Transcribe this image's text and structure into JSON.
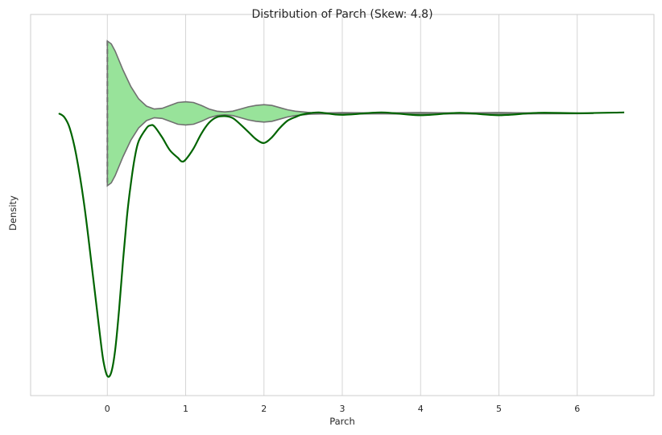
{
  "chart_data": {
    "type": "violin",
    "title": "Distribution of Parch (Skew: 4.8)",
    "xlabel": "Parch",
    "ylabel": "Density",
    "xlim": [
      -0.98,
      6.98
    ],
    "xticks": [
      0,
      1,
      2,
      3,
      4,
      5,
      6
    ],
    "grid": "vertical",
    "colors": {
      "violin_fill": "#98e39a",
      "violin_edge": "#707070",
      "line": "#006400",
      "grid": "#d5d5d5",
      "axes": "#cccccc"
    },
    "series": [
      {
        "type": "violin",
        "fill": "#98e39a",
        "points": [
          [
            0.0,
            1.0
          ],
          [
            0.05,
            0.96
          ],
          [
            0.1,
            0.86
          ],
          [
            0.2,
            0.6
          ],
          [
            0.3,
            0.37
          ],
          [
            0.4,
            0.2
          ],
          [
            0.5,
            0.1
          ],
          [
            0.6,
            0.06
          ],
          [
            0.7,
            0.07
          ],
          [
            0.8,
            0.11
          ],
          [
            0.9,
            0.15
          ],
          [
            1.0,
            0.16
          ],
          [
            1.1,
            0.15
          ],
          [
            1.2,
            0.11
          ],
          [
            1.3,
            0.06
          ],
          [
            1.4,
            0.03
          ],
          [
            1.5,
            0.02
          ],
          [
            1.6,
            0.03
          ],
          [
            1.7,
            0.06
          ],
          [
            1.8,
            0.09
          ],
          [
            1.9,
            0.11
          ],
          [
            2.0,
            0.12
          ],
          [
            2.1,
            0.11
          ],
          [
            2.2,
            0.08
          ],
          [
            2.3,
            0.05
          ],
          [
            2.4,
            0.03
          ],
          [
            2.5,
            0.02
          ],
          [
            2.6,
            0.01
          ],
          [
            2.8,
            0.007
          ],
          [
            3.0,
            0.01
          ],
          [
            3.5,
            0.004
          ],
          [
            4.0,
            0.012
          ],
          [
            4.5,
            0.004
          ],
          [
            5.0,
            0.012
          ],
          [
            5.5,
            0.004
          ],
          [
            6.0,
            0.003
          ],
          [
            6.2,
            0.001
          ]
        ]
      },
      {
        "type": "line",
        "color": "#006400",
        "points": [
          [
            -0.62,
            0.0
          ],
          [
            -0.55,
            -0.02
          ],
          [
            -0.48,
            -0.08
          ],
          [
            -0.4,
            -0.22
          ],
          [
            -0.3,
            -0.48
          ],
          [
            -0.2,
            -0.82
          ],
          [
            -0.1,
            -1.18
          ],
          [
            -0.05,
            -1.34
          ],
          [
            0.0,
            -1.42
          ],
          [
            0.05,
            -1.4
          ],
          [
            0.1,
            -1.28
          ],
          [
            0.15,
            -1.06
          ],
          [
            0.2,
            -0.8
          ],
          [
            0.25,
            -0.56
          ],
          [
            0.3,
            -0.38
          ],
          [
            0.35,
            -0.24
          ],
          [
            0.4,
            -0.15
          ],
          [
            0.5,
            -0.08
          ],
          [
            0.55,
            -0.065
          ],
          [
            0.6,
            -0.07
          ],
          [
            0.7,
            -0.13
          ],
          [
            0.8,
            -0.2
          ],
          [
            0.9,
            -0.24
          ],
          [
            0.95,
            -0.26
          ],
          [
            1.0,
            -0.25
          ],
          [
            1.1,
            -0.19
          ],
          [
            1.2,
            -0.11
          ],
          [
            1.3,
            -0.05
          ],
          [
            1.4,
            -0.02
          ],
          [
            1.5,
            -0.015
          ],
          [
            1.6,
            -0.025
          ],
          [
            1.7,
            -0.06
          ],
          [
            1.8,
            -0.1
          ],
          [
            1.9,
            -0.14
          ],
          [
            2.0,
            -0.16
          ],
          [
            2.1,
            -0.13
          ],
          [
            2.2,
            -0.08
          ],
          [
            2.3,
            -0.04
          ],
          [
            2.4,
            -0.02
          ],
          [
            2.5,
            -0.005
          ],
          [
            2.7,
            0.005
          ],
          [
            3.0,
            -0.008
          ],
          [
            3.5,
            0.005
          ],
          [
            4.0,
            -0.01
          ],
          [
            4.5,
            0.003
          ],
          [
            5.0,
            -0.01
          ],
          [
            5.5,
            0.003
          ],
          [
            6.0,
            0.001
          ],
          [
            6.6,
            0.005
          ]
        ]
      }
    ]
  }
}
